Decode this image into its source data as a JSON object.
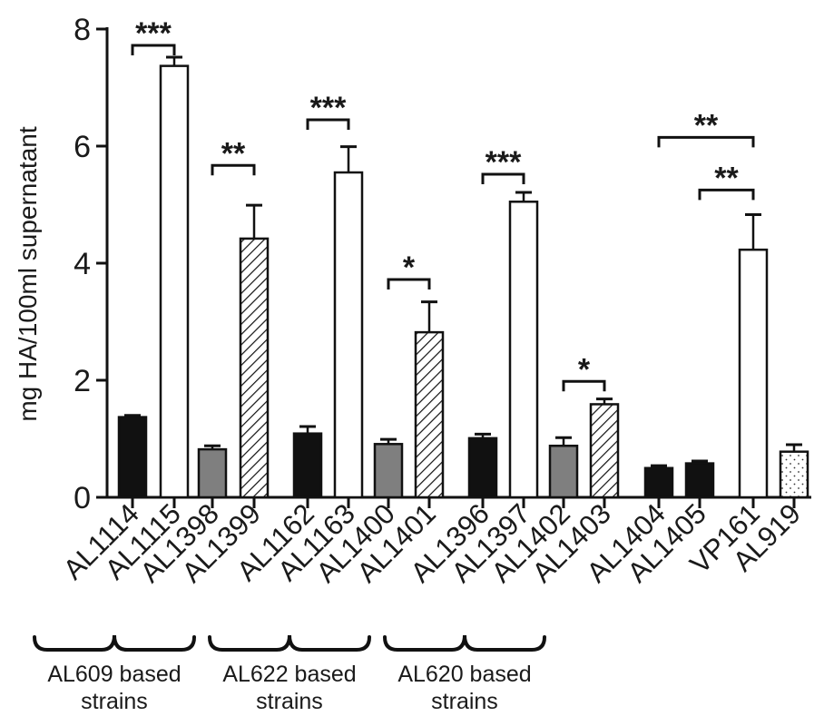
{
  "chart_data": {
    "type": "bar",
    "ylabel": "mg HA/100ml supernatant",
    "ylim": [
      0,
      8
    ],
    "yticks": [
      0,
      2,
      4,
      6,
      8
    ],
    "grid": false,
    "categories": [
      "AL1114",
      "AL1115",
      "AL1398",
      "AL1399",
      "AL1162",
      "AL1163",
      "AL1400",
      "AL1401",
      "AL1396",
      "AL1397",
      "AL1402",
      "AL1403",
      "AL1404",
      "AL1405",
      "VP161",
      "AL919"
    ],
    "bars": [
      {
        "label": "AL1114",
        "value": 1.37,
        "error": 0.03,
        "fill": "black"
      },
      {
        "label": "AL1115",
        "value": 7.37,
        "error": 0.15,
        "fill": "white"
      },
      {
        "label": "AL1398",
        "value": 0.82,
        "error": 0.06,
        "fill": "gray"
      },
      {
        "label": "AL1399",
        "value": 4.42,
        "error": 0.57,
        "fill": "hatched"
      },
      {
        "label": "AL1162",
        "value": 1.09,
        "error": 0.12,
        "fill": "black"
      },
      {
        "label": "AL1163",
        "value": 5.55,
        "error": 0.44,
        "fill": "white"
      },
      {
        "label": "AL1400",
        "value": 0.91,
        "error": 0.08,
        "fill": "gray"
      },
      {
        "label": "AL1401",
        "value": 2.82,
        "error": 0.52,
        "fill": "hatched"
      },
      {
        "label": "AL1396",
        "value": 1.01,
        "error": 0.07,
        "fill": "black"
      },
      {
        "label": "AL1397",
        "value": 5.05,
        "error": 0.16,
        "fill": "white"
      },
      {
        "label": "AL1402",
        "value": 0.88,
        "error": 0.14,
        "fill": "gray"
      },
      {
        "label": "AL1403",
        "value": 1.59,
        "error": 0.09,
        "fill": "hatched"
      },
      {
        "label": "AL1404",
        "value": 0.5,
        "error": 0.04,
        "fill": "black"
      },
      {
        "label": "AL1405",
        "value": 0.58,
        "error": 0.04,
        "fill": "black"
      },
      {
        "label": "VP161",
        "value": 4.23,
        "error": 0.6,
        "fill": "white"
      },
      {
        "label": "AL919",
        "value": 0.78,
        "error": 0.12,
        "fill": "dotted"
      }
    ],
    "significance": [
      {
        "from": 0,
        "to": 1,
        "label": "***",
        "level": 7.72
      },
      {
        "from": 2,
        "to": 3,
        "label": "**",
        "level": 5.67
      },
      {
        "from": 4,
        "to": 5,
        "label": "***",
        "level": 6.45
      },
      {
        "from": 6,
        "to": 7,
        "label": "*",
        "level": 3.72
      },
      {
        "from": 8,
        "to": 9,
        "label": "***",
        "level": 5.52
      },
      {
        "from": 10,
        "to": 11,
        "label": "*",
        "level": 1.98
      },
      {
        "from": 12,
        "to": 14,
        "label": "**",
        "level": 6.15
      },
      {
        "from": 13,
        "to": 14,
        "label": "**",
        "level": 5.25
      }
    ],
    "groups": [
      {
        "from": 0,
        "to": 3,
        "line1": "AL609 based",
        "line2": "strains"
      },
      {
        "from": 4,
        "to": 7,
        "line1": "AL622 based",
        "line2": "strains"
      },
      {
        "from": 8,
        "to": 11,
        "line1": "AL620 based",
        "line2": "strains"
      }
    ],
    "colors": {
      "black": "#111111",
      "gray": "#7f7f7f",
      "white": "#ffffff",
      "stroke": "#111111"
    }
  }
}
